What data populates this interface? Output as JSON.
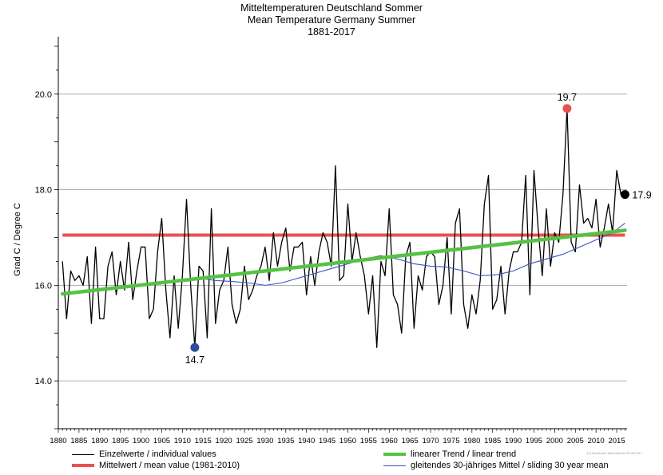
{
  "chart_data": {
    "type": "line",
    "title": [
      "Mitteltemperaturen Deutschland Sommer",
      "Mean Temperature Germany Summer",
      "1881-2017"
    ],
    "ylabel": "Grad C / Degree C",
    "xlim": [
      1880,
      2017.5
    ],
    "ylim": [
      13.0,
      21.2
    ],
    "x_ticks": [
      1880,
      1885,
      1890,
      1895,
      1900,
      1905,
      1910,
      1915,
      1920,
      1925,
      1930,
      1935,
      1940,
      1945,
      1950,
      1955,
      1960,
      1965,
      1970,
      1975,
      1980,
      1985,
      1990,
      1995,
      2000,
      2005,
      2010,
      2015
    ],
    "y_ticks": [
      14.0,
      16.0,
      18.0,
      20.0
    ],
    "y_tick_labels": [
      "14.0",
      "16.0",
      "18.0",
      "20.0"
    ],
    "grid": "horizontal",
    "series": [
      {
        "name": "Einzelwerte / individual values",
        "color": "#000000",
        "x_start": 1881,
        "values": [
          16.5,
          15.3,
          16.3,
          16.1,
          16.2,
          16.0,
          16.6,
          15.2,
          16.8,
          15.3,
          15.3,
          16.4,
          16.7,
          15.8,
          16.5,
          15.9,
          16.9,
          15.7,
          16.3,
          16.8,
          16.8,
          15.3,
          15.5,
          16.7,
          17.4,
          15.9,
          14.9,
          16.2,
          15.1,
          16.2,
          17.8,
          16.0,
          14.7,
          16.4,
          16.3,
          14.9,
          17.6,
          15.2,
          15.9,
          16.1,
          16.8,
          15.6,
          15.2,
          15.5,
          16.4,
          15.7,
          15.9,
          16.2,
          16.4,
          16.8,
          16.1,
          17.1,
          16.4,
          16.9,
          17.2,
          16.3,
          16.8,
          16.8,
          16.9,
          15.8,
          16.6,
          16.0,
          16.7,
          17.1,
          16.9,
          16.4,
          18.5,
          16.1,
          16.2,
          17.7,
          16.5,
          17.1,
          16.6,
          16.2,
          15.4,
          16.2,
          14.7,
          16.5,
          16.2,
          17.6,
          15.8,
          15.6,
          15.0,
          16.6,
          16.9,
          15.1,
          16.2,
          15.9,
          16.6,
          16.7,
          16.6,
          15.6,
          16.0,
          17.0,
          15.4,
          17.3,
          17.6,
          15.6,
          15.1,
          15.8,
          15.4,
          16.1,
          17.7,
          18.3,
          15.5,
          15.7,
          16.4,
          15.4,
          16.3,
          16.7,
          16.7,
          16.9,
          18.3,
          15.8,
          18.4,
          17.2,
          16.2,
          17.6,
          16.4,
          17.1,
          16.9,
          17.9,
          19.7,
          16.9,
          16.7,
          18.1,
          17.3,
          17.4,
          17.2,
          17.8,
          16.8,
          17.2,
          17.7,
          17.1,
          18.4,
          17.9,
          17.9
        ]
      },
      {
        "name": "Mittelwert / mean value (1981-2010)",
        "color": "#e8524f",
        "value": 17.05
      },
      {
        "name": "linearer Trend / linear trend",
        "color": "#55c244",
        "x": [
          1881,
          2017
        ],
        "values": [
          15.82,
          17.15
        ]
      },
      {
        "name": "gleitendes 30-jähriges Mittel / sliding 30 year mean",
        "color": "#3f4fc6",
        "x": [
          1910,
          1914,
          1918,
          1922,
          1926,
          1930,
          1934,
          1938,
          1942,
          1946,
          1950,
          1954,
          1958,
          1962,
          1966,
          1970,
          1974,
          1978,
          1982,
          1986,
          1990,
          1994,
          1998,
          2002,
          2006,
          2010,
          2014,
          2017
        ],
        "values": [
          16.1,
          16.15,
          16.1,
          16.08,
          16.05,
          16.0,
          16.05,
          16.15,
          16.25,
          16.35,
          16.45,
          16.55,
          16.62,
          16.55,
          16.45,
          16.4,
          16.38,
          16.3,
          16.2,
          16.22,
          16.3,
          16.45,
          16.55,
          16.65,
          16.8,
          16.95,
          17.1,
          17.3
        ]
      }
    ],
    "highlights": [
      {
        "x": 1913,
        "y": 14.7,
        "label": "14.7",
        "color": "#2d4e9a"
      },
      {
        "x": 2003,
        "y": 19.7,
        "label": "19.7",
        "color": "#e8524f"
      },
      {
        "x": 2017,
        "y": 17.9,
        "label": "17.9",
        "color": "#000000"
      }
    ],
    "legend_placement": "bottom"
  },
  "copyright": "(C) Deutscher Wetterdienst 30.08.2017"
}
